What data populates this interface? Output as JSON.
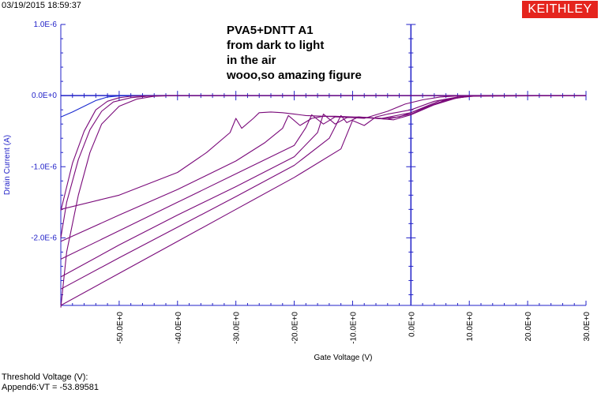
{
  "header": {
    "timestamp": "03/19/2015 18:59:37",
    "logo_text": "KEITHLEY"
  },
  "footer": {
    "line1": "Threshold Voltage (V):",
    "line2": "Append6:VT = -53.89581"
  },
  "colors": {
    "series_dark": "#7a0a7a",
    "series_blue": "#1a2ad0",
    "axis_blue": "#2222c8",
    "grid": "#4a55ff",
    "logo_bg": "#e5241d"
  },
  "chart_data": {
    "type": "line",
    "title": "",
    "annotations": [
      "PVA5+DNTT A1",
      "from dark to light",
      "in the air",
      "wooo,so amazing figure"
    ],
    "xlabel": "Gate Voltage (V)",
    "ylabel": "Drain Current (A)",
    "xlim": [
      -60,
      30
    ],
    "ylim": [
      -2.95e-06,
      1e-06
    ],
    "x_ticks": [
      -50,
      -40,
      -30,
      -20,
      -10,
      0,
      10,
      20,
      30
    ],
    "x_tick_labels": [
      "-50.0E+0",
      "-40.0E+0",
      "-30.0E+0",
      "-20.0E+0",
      "-10.0E+0",
      "0.0E+0",
      "10.0E+0",
      "20.0E+0",
      "30.0E+0"
    ],
    "y_ticks": [
      1e-06,
      0,
      -1e-06,
      -2e-06
    ],
    "y_tick_labels": [
      "1.0E-6",
      "0.0E+0",
      "-1.0E-6",
      "-2.0E-6"
    ],
    "grid": false,
    "legend": "none",
    "series": [
      {
        "color_key": "series_blue",
        "x": [
          -60,
          -58,
          -56,
          -54,
          -52,
          -50,
          -48,
          -46,
          -44,
          -40,
          -30,
          -20,
          -10,
          0,
          10,
          20,
          30
        ],
        "y": [
          -3e-07,
          -2.3e-07,
          -1.5e-07,
          -7e-08,
          -2e-08,
          -5e-09,
          -1e-09,
          0,
          0,
          0,
          0,
          0,
          0,
          0,
          0,
          0,
          0
        ]
      },
      {
        "color_key": "series_dark",
        "x": [
          -60,
          -58,
          -56,
          -54,
          -52,
          -50,
          -48,
          -46,
          -44,
          -40,
          -30,
          -20,
          -10,
          0,
          10,
          30
        ],
        "y": [
          -1.62e-06,
          -9.5e-07,
          -5e-07,
          -2e-07,
          -8e-08,
          -3e-08,
          -1e-08,
          -5e-09,
          -2e-09,
          -1e-09,
          0,
          0,
          0,
          0,
          0,
          0
        ]
      },
      {
        "color_key": "series_dark",
        "x": [
          -60,
          -50,
          -40,
          -35,
          -31,
          -30,
          -29,
          -27,
          -26,
          -24,
          -22,
          -20,
          -18,
          -15,
          -12,
          -8,
          -4,
          -1,
          2,
          5,
          8,
          10,
          12,
          15,
          30
        ],
        "y": [
          -1.6e-06,
          -1.4e-06,
          -1.08e-06,
          -8e-07,
          -5.2e-07,
          -3.2e-07,
          -4.6e-07,
          -3.2e-07,
          -2.4e-07,
          -2.3e-07,
          -2.4e-07,
          -2.6e-07,
          -2.8e-07,
          -2.9e-07,
          -3e-07,
          -3.2e-07,
          -2.2e-07,
          -1.2e-07,
          -6e-08,
          -2e-08,
          -5e-09,
          0,
          0,
          0,
          0
        ]
      },
      {
        "color_key": "series_dark",
        "x": [
          -60,
          -50,
          -40,
          -30,
          -25,
          -22,
          -21,
          -19,
          -17,
          -15,
          -13,
          -10,
          -5,
          0,
          5,
          10,
          15,
          30
        ],
        "y": [
          -2.05e-06,
          -1.68e-06,
          -1.32e-06,
          -9.2e-07,
          -6.6e-07,
          -4.6e-07,
          -2.8e-07,
          -4.2e-07,
          -3.2e-07,
          -2.9e-07,
          -2.9e-07,
          -3e-07,
          -3.2e-07,
          -2.4e-07,
          -7e-08,
          -1e-08,
          0,
          0
        ]
      },
      {
        "color_key": "series_dark",
        "x": [
          -60,
          -50,
          -40,
          -30,
          -20,
          -18,
          -17,
          -15,
          -13,
          -11,
          -8,
          -4,
          0,
          4,
          8,
          12,
          30
        ],
        "y": [
          -2.3e-06,
          -1.9e-06,
          -1.5e-06,
          -1.1e-06,
          -7e-07,
          -4.5e-07,
          -2.7e-07,
          -4e-07,
          -3e-07,
          -3e-07,
          -3.1e-07,
          -3.3e-07,
          -2.6e-07,
          -1.2e-07,
          -2e-08,
          0,
          0
        ]
      },
      {
        "color_key": "series_dark",
        "x": [
          -60,
          -50,
          -40,
          -30,
          -20,
          -16,
          -15,
          -13,
          -11,
          -9,
          -6,
          -3,
          0,
          4,
          8,
          12,
          30
        ],
        "y": [
          -2.55e-06,
          -2.1e-06,
          -1.68e-06,
          -1.28e-06,
          -8.6e-07,
          -5.2e-07,
          -2.6e-07,
          -4e-07,
          -3.1e-07,
          -3e-07,
          -3.2e-07,
          -3.4e-07,
          -2.7e-07,
          -1.3e-07,
          -3e-08,
          0,
          0
        ]
      },
      {
        "color_key": "series_dark",
        "x": [
          -60,
          -50,
          -40,
          -30,
          -20,
          -14,
          -12,
          -11,
          -9,
          -7,
          -5,
          -2,
          2,
          6,
          10,
          30
        ],
        "y": [
          -2.72e-06,
          -2.28e-06,
          -1.85e-06,
          -1.42e-06,
          -9.8e-07,
          -6e-07,
          -2.8e-07,
          -3.8e-07,
          -3e-07,
          -3.1e-07,
          -3.2e-07,
          -3e-07,
          -1.8e-07,
          -6e-08,
          -1e-08,
          0
        ]
      },
      {
        "color_key": "series_dark",
        "x": [
          -60,
          -50,
          -40,
          -30,
          -20,
          -12,
          -10,
          -8,
          -6,
          -4,
          0,
          4,
          8,
          12,
          30
        ],
        "y": [
          -2.95e-06,
          -2.5e-06,
          -2.05e-06,
          -1.6e-06,
          -1.15e-06,
          -7.5e-07,
          -3.5e-07,
          -4.2e-07,
          -3e-07,
          -2.6e-07,
          -2e-07,
          -8e-08,
          -2e-08,
          0,
          0
        ]
      },
      {
        "color_key": "series_dark",
        "x": [
          -60,
          -59,
          -57,
          -55,
          -53,
          -50,
          -47,
          -44,
          -40,
          -30,
          -20,
          -10,
          0,
          10,
          30
        ],
        "y": [
          -2.98e-06,
          -2.2e-06,
          -1.4e-06,
          -8e-07,
          -4e-07,
          -1.5e-07,
          -5e-08,
          -1e-08,
          0,
          0,
          0,
          0,
          0,
          0,
          0
        ]
      },
      {
        "color_key": "series_dark",
        "x": [
          -60,
          -59,
          -57,
          -55,
          -53,
          -51,
          -48,
          -45,
          -42,
          -40,
          -30,
          30
        ],
        "y": [
          -2e-06,
          -1.5e-06,
          -9e-07,
          -4.8e-07,
          -2.2e-07,
          -9e-08,
          -3e-08,
          -8e-09,
          -1e-09,
          0,
          0,
          0
        ]
      }
    ]
  }
}
